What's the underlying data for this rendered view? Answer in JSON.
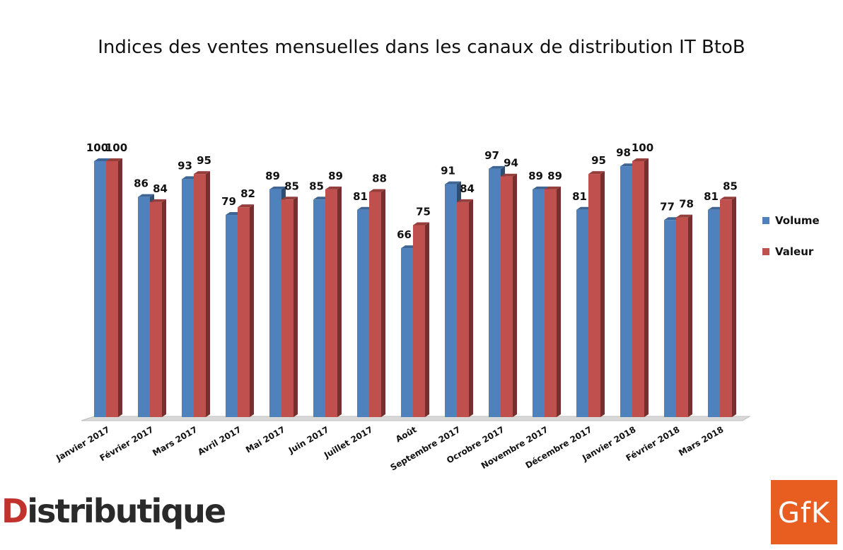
{
  "chart_data": {
    "type": "bar",
    "title": "Indices des ventes mensuelles dans les canaux de distribution IT BtoB",
    "categories": [
      "Janvier 2017",
      "Février 2017",
      "Mars 2017",
      "Avril 2017",
      "Mai 2017",
      "Juin 2017",
      "Juillet 2017",
      "Août",
      "Septembre 2017",
      "Ocrobre 2017",
      "Novembre 2017",
      "Décembre 2017",
      "Janvier 2018",
      "Février 2018",
      "Mars 2018"
    ],
    "series": [
      {
        "name": "Volume",
        "color": "#4f81bd",
        "values": [
          100,
          86,
          93,
          79,
          89,
          85,
          81,
          66,
          91,
          97,
          89,
          81,
          98,
          77,
          81
        ]
      },
      {
        "name": "Valeur",
        "color": "#c0504d",
        "values": [
          100,
          84,
          95,
          82,
          85,
          89,
          88,
          75,
          84,
          94,
          89,
          95,
          100,
          78,
          85
        ]
      }
    ],
    "ylim": [
      0,
      100
    ],
    "grid": false,
    "legend_position": "right",
    "data_labels": true,
    "three_d": true
  },
  "logos": {
    "distributique": {
      "first": "D",
      "rest": "istributique"
    },
    "gfk": "GfK"
  }
}
